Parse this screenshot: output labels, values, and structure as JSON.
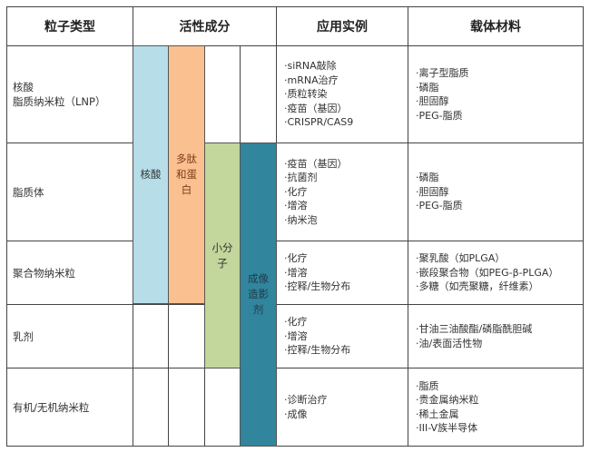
{
  "headers": {
    "type": "粒子类型",
    "active": "活性成分",
    "app": "应用实例",
    "carrier": "载体材料"
  },
  "rows": [
    {
      "type": [
        "核酸",
        "脂质纳米粒（LNP）"
      ],
      "app": [
        "·siRNA敲除",
        "·mRNA治疗",
        "·质粒转染",
        "·疫苗（基因）",
        "·CRISPR/CAS9"
      ],
      "carrier": [
        "·离子型脂质",
        "·磷脂",
        "·胆固醇",
        "·PEG-脂质"
      ]
    },
    {
      "type": [
        "脂质体"
      ],
      "app": [
        "·疫苗（基因）",
        "·抗菌剂",
        "·化疗",
        "·增溶",
        "·纳米泡"
      ],
      "carrier": [
        "·磷脂",
        "·胆固醇",
        "·PEG-脂质"
      ]
    },
    {
      "type": [
        "聚合物纳米粒"
      ],
      "app": [
        "·化疗",
        "·增溶",
        "·控释/生物分布"
      ],
      "carrier": [
        "·聚乳酸（如PLGA）",
        "·嵌段聚合物（如PEG-β-PLGA）",
        "·多糖（如壳聚糖，纤维素）"
      ]
    },
    {
      "type": [
        "乳剂"
      ],
      "app": [
        "·化疗",
        "·增溶",
        "·控释/生物分布"
      ],
      "carrier": [
        "·甘油三油酸酯/磷脂酰胆碱",
        "·油/表面活性物"
      ]
    },
    {
      "type": [
        "有机/无机纳米粒"
      ],
      "app": [
        "·诊断治疗",
        "·成像"
      ],
      "carrier": [
        "·脂质",
        "·贵金属纳米粒",
        "·稀土金属",
        "·III-V族半导体"
      ]
    }
  ],
  "bars": [
    {
      "label": "核酸",
      "color": "#b7dde8",
      "text_color": "#333333"
    },
    {
      "label": "多肽和蛋白",
      "color": "#fac090",
      "text_color": "#7f3a1a"
    },
    {
      "label": "小分子",
      "color": "#c3d69b",
      "text_color": "#333333"
    },
    {
      "label": "成像造影剂",
      "color": "#31859c",
      "text_color": "#1f3b4d"
    }
  ]
}
